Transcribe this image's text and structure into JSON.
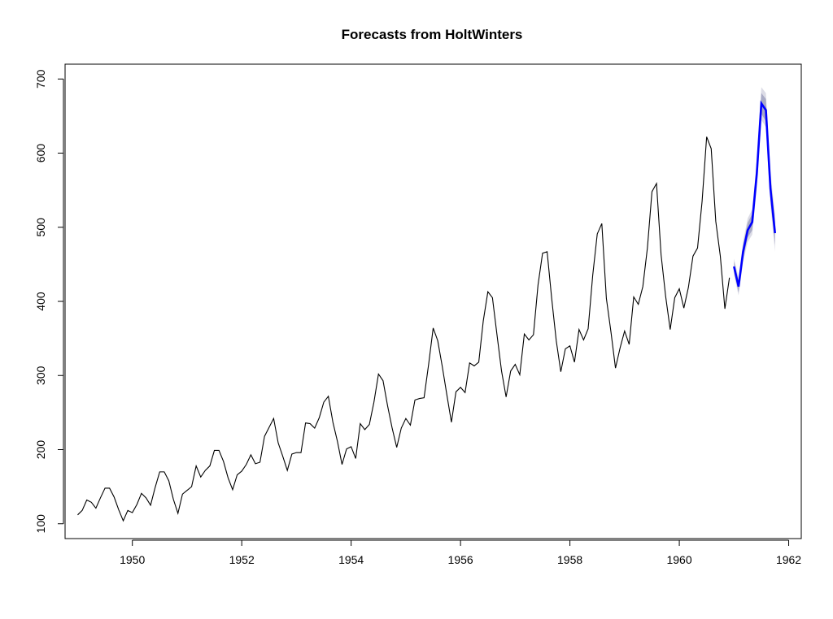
{
  "chart_data": {
    "type": "line",
    "title": "Forecasts from HoltWinters",
    "xlabel": "",
    "ylabel": "",
    "xlim": [
      1948.77,
      1962.23
    ],
    "ylim": [
      80,
      720
    ],
    "x_ticks": [
      1950,
      1952,
      1954,
      1956,
      1958,
      1960,
      1962
    ],
    "y_ticks": [
      100,
      200,
      300,
      400,
      500,
      600,
      700
    ],
    "grid": false,
    "legend": "none",
    "colors": {
      "observed": "#000000",
      "forecast": "#0000ff",
      "band_80": "#a9abc5",
      "band_95": "#dcdce6"
    },
    "observed": {
      "start": 1949.0,
      "frequency": 12,
      "values": [
        112,
        118,
        132,
        129,
        121,
        135,
        148,
        148,
        136,
        119,
        104,
        118,
        115,
        126,
        141,
        135,
        125,
        149,
        170,
        170,
        158,
        133,
        114,
        140,
        145,
        150,
        178,
        163,
        172,
        178,
        199,
        199,
        184,
        162,
        146,
        166,
        171,
        180,
        193,
        181,
        183,
        218,
        230,
        242,
        209,
        191,
        172,
        194,
        196,
        196,
        236,
        235,
        229,
        243,
        264,
        272,
        237,
        211,
        180,
        201,
        204,
        188,
        235,
        227,
        234,
        264,
        302,
        293,
        259,
        229,
        203,
        229,
        242,
        233,
        267,
        269,
        270,
        315,
        364,
        347,
        312,
        274,
        237,
        278,
        284,
        277,
        317,
        313,
        318,
        374,
        413,
        405,
        355,
        306,
        271,
        306,
        315,
        301,
        356,
        348,
        355,
        422,
        465,
        467,
        404,
        347,
        305,
        336,
        340,
        318,
        362,
        348,
        363,
        435,
        491,
        505,
        404,
        359,
        310,
        337,
        360,
        342,
        406,
        396,
        420,
        472,
        548,
        559,
        463,
        407,
        362,
        405,
        417,
        391,
        419,
        461,
        472,
        535,
        622,
        606,
        508,
        461,
        390,
        432
      ]
    },
    "forecast": {
      "start": 1961.0,
      "frequency": 12,
      "values": [
        447,
        420,
        467,
        496,
        507,
        572,
        667,
        658,
        552,
        492
      ],
      "lo80": [
        440,
        412,
        458,
        486,
        496,
        560,
        653,
        643,
        537,
        476
      ],
      "hi80": [
        454,
        428,
        476,
        506,
        518,
        584,
        681,
        673,
        567,
        508
      ],
      "lo95": [
        436,
        408,
        453,
        480,
        490,
        553,
        645,
        635,
        529,
        467
      ],
      "hi95": [
        458,
        432,
        481,
        512,
        524,
        591,
        689,
        681,
        575,
        517
      ]
    }
  }
}
